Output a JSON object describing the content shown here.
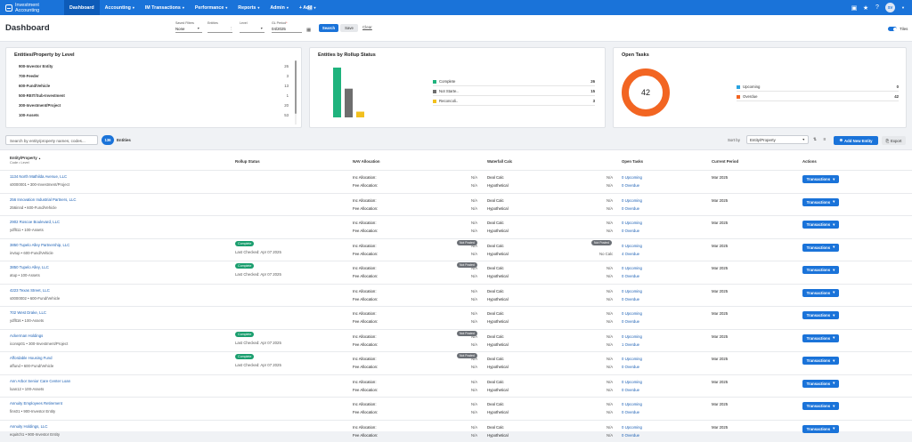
{
  "app": {
    "name": "Investment Accounting",
    "user_initials": "SV"
  },
  "nav": [
    {
      "label": "Dashboard",
      "active": true,
      "dropdown": false
    },
    {
      "label": "Accounting",
      "active": false,
      "dropdown": true
    },
    {
      "label": "IM Transactions",
      "active": false,
      "dropdown": true
    },
    {
      "label": "Performance",
      "active": false,
      "dropdown": true
    },
    {
      "label": "Reports",
      "active": false,
      "dropdown": true
    },
    {
      "label": "Admin",
      "active": false,
      "dropdown": true
    },
    {
      "label": "+ Add",
      "active": false,
      "dropdown": true
    }
  ],
  "toolbar": {
    "page_title": "Dashboard",
    "saved_filters_label": "Saved Filters",
    "saved_filters_value": "None",
    "entities_label": "Entities",
    "entities_value": "",
    "level_label": "Level",
    "level_value": "",
    "gl_period_label": "GL Period",
    "gl_period_required": "*",
    "gl_period_value": "04/2025",
    "search_label": "Search",
    "save_label": "Save",
    "clear_label": "Clear",
    "tiles_label": "Tiles"
  },
  "level_card": {
    "title": "Entities/Property by Level",
    "rows": [
      {
        "label": "900-Investor Entity",
        "count": "26"
      },
      {
        "label": "700-Feeder",
        "count": "3"
      },
      {
        "label": "600-Fund/Vehicle",
        "count": "13"
      },
      {
        "label": "500-REIT/Sub-Investment",
        "count": "1"
      },
      {
        "label": "300-Investment/Project",
        "count": "20"
      },
      {
        "label": "100-Assets",
        "count": "53"
      }
    ]
  },
  "rollup_card": {
    "title": "Entities by Rollup Status",
    "chart_data": {
      "type": "bar",
      "categories": [
        "Complete",
        "Not Starte..",
        "Reconcoli.."
      ],
      "values": [
        26,
        15,
        3
      ],
      "colors": [
        "#1fb37d",
        "#6e6e6e",
        "#f2c01e"
      ]
    }
  },
  "tasks_card": {
    "title": "Open Tasks",
    "total": "42",
    "chart_data": {
      "type": "pie",
      "categories": [
        "Upcoming",
        "Overdue"
      ],
      "values": [
        0,
        42
      ],
      "colors": [
        "#29a3e0",
        "#f26522"
      ]
    }
  },
  "table_tools": {
    "search_placeholder": "Search by entity/property names, codes...",
    "entity_count": "136",
    "entity_count_label": "Entities",
    "sort_by_label": "Sort by",
    "sort_value": "Entity/Property",
    "add_new_label": "Add New Entity",
    "export_label": "Export"
  },
  "columns": {
    "entity": "Entity/Property",
    "entity_sort": "▲",
    "entity_sub": "Code • Level",
    "rollup": "Rollup Status",
    "nav": "NAV Allocation",
    "waterfall": "Waterfall Calc",
    "tasks": "Open Tasks",
    "period": "Current Period",
    "actions": "Actions"
  },
  "row_labels": {
    "inc_alloc": "Inc Allocation:",
    "fee_alloc": "Fee Allocation:",
    "deal_calc": "Deal Calc",
    "hypothetical": "Hypothetical",
    "na": "N/A",
    "no_calc": "No Calc",
    "not_posted": "Not Posted",
    "complete": "Complete",
    "last_checked": "Last Checked: Apr 07 2025",
    "upcoming": "0 Upcoming",
    "txn_btn": "Transactions"
  },
  "rows": [
    {
      "name": "1134 North Mathilda Avenue, LLC",
      "code": "s0000001 • 300-Investment/Project",
      "complete": false,
      "nav_np": false,
      "wf_np": false,
      "overdue": "0 Overdue",
      "period": "Mar 2025"
    },
    {
      "name": "256 Innovation Industrial Partners, LLC",
      "code": "256innd • 600-Fund/Vehicle",
      "complete": false,
      "nav_np": false,
      "wf_np": false,
      "overdue": "0 Overdue",
      "period": "Mar 2025"
    },
    {
      "name": "2902 Roscoe Boulevard, LLC",
      "code": "ydflt11 • 100-Assets",
      "complete": false,
      "nav_np": false,
      "wf_np": false,
      "overdue": "0 Overdue",
      "period": "Mar 2025"
    },
    {
      "name": "3850 Tupelo Alley Partnership, LLC",
      "code": "invtup • 600-Fund/Vehicle",
      "complete": true,
      "nav_np": true,
      "wf_np": true,
      "overdue": "4 Overdue",
      "period": "Mar 2025"
    },
    {
      "name": "3850 Tupelo Alley, LLC",
      "code": "atup • 100-Assets",
      "complete": true,
      "nav_np": true,
      "wf_np": false,
      "overdue": "0 Overdue",
      "period": "Mar 2025"
    },
    {
      "name": "4223 Texas Street, LLC",
      "code": "s0000002 • 600-Fund/Vehicle",
      "complete": false,
      "nav_np": false,
      "wf_np": false,
      "overdue": "0 Overdue",
      "period": "Mar 2025"
    },
    {
      "name": "702 West Drake, LLC",
      "code": "ydflt16 • 100-Assets",
      "complete": false,
      "nav_np": false,
      "wf_np": false,
      "overdue": "0 Overdue",
      "period": "Mar 2025"
    },
    {
      "name": "Ackerman Holdings",
      "code": "iconsp01 • 300-Investment/Project",
      "complete": true,
      "nav_np": true,
      "wf_np": false,
      "overdue": "1 Overdue",
      "period": "Mar 2025"
    },
    {
      "name": "Affordable Housing Fund",
      "code": "affund • 600-Fund/Vehicle",
      "complete": true,
      "nav_np": true,
      "wf_np": false,
      "overdue": "0 Overdue",
      "period": "Mar 2025"
    },
    {
      "name": "Ann Arbor Senior Care Center Loan",
      "code": "loan12 • 100-Assets",
      "complete": false,
      "nav_np": false,
      "wf_np": false,
      "overdue": "0 Overdue",
      "period": "Mar 2025"
    },
    {
      "name": "Annuity Employees Retirement",
      "code": "fins01 • 900-Investor Entity",
      "complete": false,
      "nav_np": false,
      "wf_np": false,
      "overdue": "0 Overdue",
      "period": "Mar 2025"
    },
    {
      "name": "Annuity Holdings, LLC",
      "code": "equitch1 • 900-Investor Entity",
      "complete": false,
      "nav_np": false,
      "wf_np": false,
      "overdue": "0 Overdue",
      "period": "Mar 2025"
    }
  ]
}
